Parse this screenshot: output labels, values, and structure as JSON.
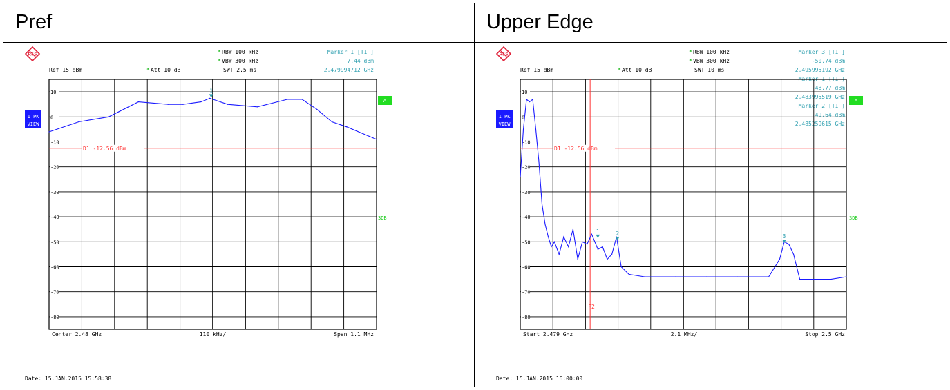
{
  "panels": [
    {
      "title": "Pref",
      "date": "Date: 15.JAN.2015  15:58:38",
      "header": {
        "ref": "Ref  15 dBm",
        "att_star": "*",
        "att": "Att  10 dB",
        "rbw_star": "*",
        "rbw": "RBW 100 kHz",
        "vbw_star": "*",
        "vbw": "VBW 300 kHz",
        "swt": "SWT 2.5 ms"
      },
      "markers_text": [
        {
          "label": "Marker 1 [T1 ]",
          "level": "7.44 dBm",
          "freq": "2.479994712 GHz"
        }
      ],
      "side": {
        "trace": "1 PK",
        "mode": "VIEW",
        "a": "A",
        "threedb": "3DB"
      },
      "display_line": "D1 -12.56 dBm",
      "footer": {
        "left": "Center  2.48 GHz",
        "mid": "110 kHz/",
        "right": "Span  1.1 MHz"
      },
      "logo": "R&S"
    },
    {
      "title": "Upper Edge",
      "date": "Date: 15.JAN.2015  16:00:00",
      "header": {
        "ref": "Ref  15 dBm",
        "att_star": "*",
        "att": "Att  10 dB",
        "rbw_star": "*",
        "rbw": "RBW 100 kHz",
        "vbw_star": "*",
        "vbw": "VBW 300 kHz",
        "swt": "SWT 10 ms"
      },
      "markers_text": [
        {
          "label": "Marker 3 [T1 ]",
          "level": "-50.74 dBm",
          "freq": "2.495995192 GHz"
        },
        {
          "label": "Marker 1 [T1 ]",
          "level": "-48.77 dBm",
          "freq": "2.483995519 GHz"
        },
        {
          "label": "Marker 2 [T1 ]",
          "level": "-49.64 dBm",
          "freq": "2.485259615 GHz"
        }
      ],
      "side": {
        "trace": "1 PK",
        "mode": "VIEW",
        "a": "A",
        "threedb": "3DB"
      },
      "display_line": "D1 -12.56 dBm",
      "f2_label": "F2",
      "footer": {
        "left": "Start  2.479 GHz",
        "mid": "2.1 MHz/",
        "right": "Stop  2.5 GHz"
      },
      "logo": "R&S"
    }
  ],
  "chart_data": [
    {
      "type": "line",
      "title": "Pref",
      "xlabel": "",
      "ylabel": "",
      "xlim": [
        2.47945,
        2.48055
      ],
      "ylim": [
        -85,
        15
      ],
      "grid": true,
      "y_ticks": [
        10,
        0,
        -10,
        -20,
        -30,
        -40,
        -50,
        -60,
        -70,
        -80
      ],
      "display_line_dbm": -12.56,
      "series": [
        {
          "values_x_ghz": [
            2.47945,
            2.47955,
            2.47965,
            2.47975,
            2.47985,
            2.4799,
            2.47996,
            2.47999,
            2.48005,
            2.48015,
            2.48025,
            2.4803,
            2.48035,
            2.4804,
            2.48045,
            2.48055
          ],
          "values_dbm": [
            -6,
            -2,
            0,
            6,
            5,
            5,
            6,
            7.44,
            5,
            4,
            7,
            7,
            3,
            -2,
            -4,
            -9
          ],
          "color": "#1a1aff"
        }
      ],
      "markers": [
        {
          "id": "1",
          "x_ghz": 2.479994712,
          "dbm": 7.44
        }
      ]
    },
    {
      "type": "line",
      "title": "Upper Edge",
      "xlabel": "",
      "ylabel": "",
      "xlim": [
        2.479,
        2.5
      ],
      "ylim": [
        -85,
        15
      ],
      "grid": true,
      "y_ticks": [
        10,
        0,
        -10,
        -20,
        -30,
        -40,
        -50,
        -60,
        -70,
        -80
      ],
      "display_line_dbm": -12.56,
      "f2_line_ghz": 2.4835,
      "series": [
        {
          "values_x_ghz": [
            2.479,
            2.4792,
            2.4794,
            2.4796,
            2.4798,
            2.48,
            2.4802,
            2.4804,
            2.4806,
            2.4808,
            2.481,
            2.4812,
            2.4815,
            2.4818,
            2.4821,
            2.4824,
            2.4827,
            2.483,
            2.4833,
            2.4836,
            2.484,
            2.4843,
            2.4846,
            2.4849,
            2.4852,
            2.4855,
            2.486,
            2.487,
            2.489,
            2.491,
            2.493,
            2.495,
            2.4957,
            2.496,
            2.4963,
            2.4966,
            2.497,
            2.498,
            2.499,
            2.5
          ],
          "values_dbm": [
            -24,
            -5,
            7,
            6,
            7,
            -5,
            -18,
            -35,
            -43,
            -48,
            -52,
            -50,
            -55,
            -48,
            -52,
            -45,
            -57,
            -50,
            -51,
            -47,
            -53,
            -52,
            -57,
            -55,
            -48,
            -60,
            -63,
            -64,
            -64,
            -64,
            -64,
            -64,
            -57,
            -50,
            -51,
            -55,
            -65,
            -65,
            -65,
            -64
          ],
          "color": "#1a1aff"
        }
      ],
      "markers": [
        {
          "id": "1",
          "x_ghz": 2.483995519,
          "dbm": -48.77
        },
        {
          "id": "2",
          "x_ghz": 2.485259615,
          "dbm": -49.64
        },
        {
          "id": "3",
          "x_ghz": 2.495995192,
          "dbm": -50.74
        }
      ]
    }
  ],
  "colors": {
    "trace": "#1a1aff",
    "grid": "#000000",
    "display_line": "#ff3333",
    "header_text": "#000000",
    "marker_text": "#30a0b0",
    "green_star": "#00b000",
    "side_badge": "#1a1aff",
    "a_badge": "#22dd22",
    "threedb": "#22cc22",
    "logo": "#e0243c"
  }
}
